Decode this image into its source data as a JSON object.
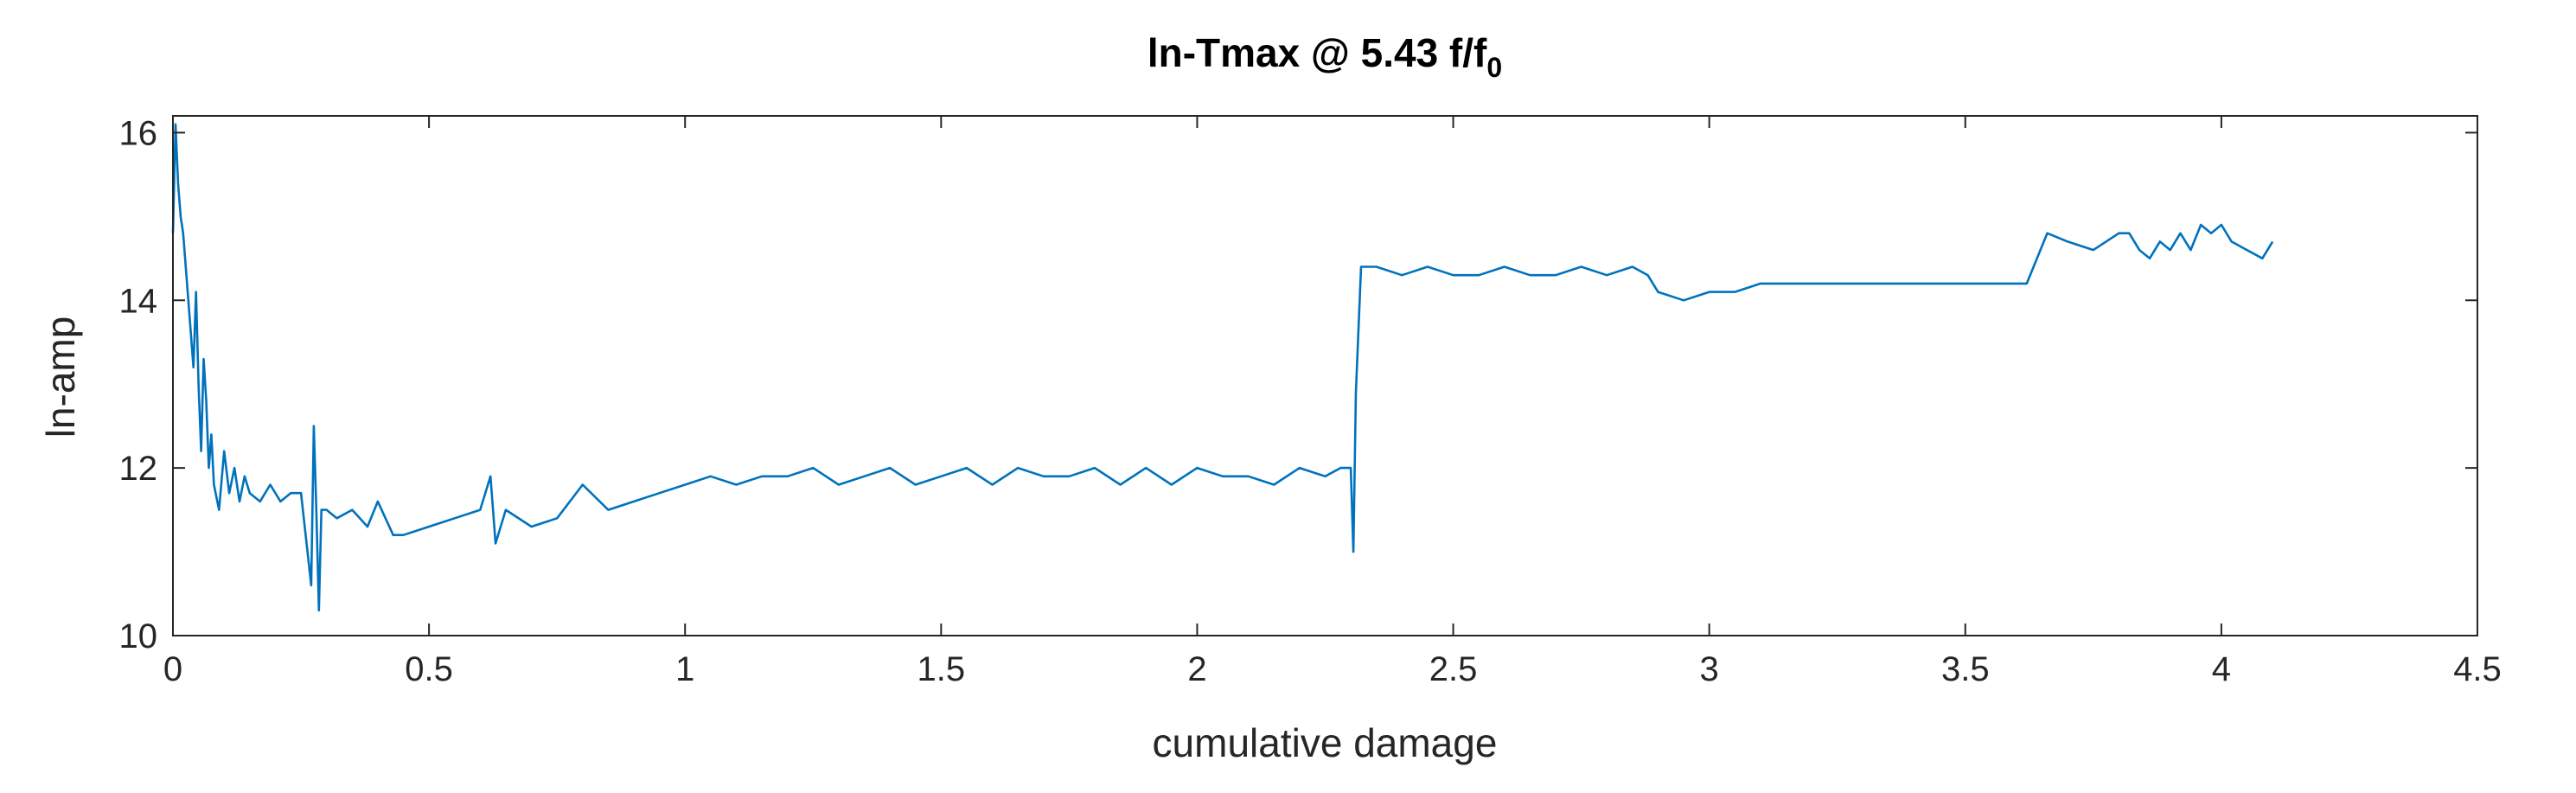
{
  "chart_data": {
    "type": "line",
    "title": "ln-Tmax @ 5.43 f/f",
    "title_subscript": "0",
    "xlabel": "cumulative damage",
    "ylabel": "ln-amp",
    "xlim": [
      0,
      4.5
    ],
    "ylim": [
      10,
      16.2
    ],
    "xticks": [
      0,
      0.5,
      1,
      1.5,
      2,
      2.5,
      3,
      3.5,
      4,
      4.5
    ],
    "xtick_labels": [
      "0",
      "0.5",
      "1",
      "1.5",
      "2",
      "2.5",
      "3",
      "3.5",
      "4",
      "4.5"
    ],
    "yticks": [
      10,
      12,
      14,
      16
    ],
    "ytick_labels": [
      "10",
      "12",
      "14",
      "16"
    ],
    "grid": false,
    "color": "#0072BD",
    "series": [
      {
        "x": [
          0,
          0.005,
          0.01,
          0.015,
          0.02,
          0.03,
          0.04,
          0.045,
          0.05,
          0.055,
          0.06,
          0.065,
          0.07,
          0.075,
          0.08,
          0.09,
          0.1,
          0.11,
          0.12,
          0.13,
          0.14,
          0.15,
          0.17,
          0.19,
          0.21,
          0.23,
          0.25,
          0.27,
          0.275,
          0.28,
          0.285,
          0.29,
          0.295,
          0.3,
          0.32,
          0.35,
          0.38,
          0.4,
          0.43,
          0.45,
          0.5,
          0.55,
          0.6,
          0.62,
          0.63,
          0.65,
          0.7,
          0.75,
          0.8,
          0.85,
          0.9,
          0.95,
          1.0,
          1.05,
          1.1,
          1.15,
          1.2,
          1.25,
          1.3,
          1.35,
          1.4,
          1.45,
          1.5,
          1.55,
          1.6,
          1.65,
          1.7,
          1.75,
          1.8,
          1.85,
          1.9,
          1.95,
          2.0,
          2.05,
          2.1,
          2.15,
          2.2,
          2.25,
          2.28,
          2.3,
          2.305,
          2.31,
          2.32,
          2.35,
          2.4,
          2.45,
          2.5,
          2.55,
          2.6,
          2.65,
          2.7,
          2.75,
          2.8,
          2.85,
          2.88,
          2.9,
          2.95,
          3.0,
          3.05,
          3.1,
          3.15,
          3.2,
          3.25,
          3.3,
          3.35,
          3.4,
          3.45,
          3.5,
          3.55,
          3.6,
          3.62,
          3.64,
          3.66,
          3.7,
          3.75,
          3.8,
          3.82,
          3.84,
          3.86,
          3.88,
          3.9,
          3.92,
          3.94,
          3.96,
          3.98,
          4.0,
          4.02,
          4.05,
          4.08,
          4.1
        ],
        "y": [
          14.8,
          16.1,
          15.4,
          15.0,
          14.8,
          14.0,
          13.2,
          14.1,
          13.0,
          12.2,
          13.3,
          12.8,
          12.0,
          12.4,
          11.8,
          11.5,
          12.2,
          11.7,
          12.0,
          11.6,
          11.9,
          11.7,
          11.6,
          11.8,
          11.6,
          11.7,
          11.7,
          10.6,
          12.5,
          11.5,
          10.3,
          11.5,
          11.5,
          11.5,
          11.4,
          11.5,
          11.3,
          11.6,
          11.2,
          11.2,
          11.3,
          11.4,
          11.5,
          11.9,
          11.1,
          11.5,
          11.3,
          11.4,
          11.8,
          11.5,
          11.6,
          11.7,
          11.8,
          11.9,
          11.8,
          11.9,
          11.9,
          12.0,
          11.8,
          11.9,
          12.0,
          11.8,
          11.9,
          12.0,
          11.8,
          12.0,
          11.9,
          11.9,
          12.0,
          11.8,
          12.0,
          11.8,
          12.0,
          11.9,
          11.9,
          11.8,
          12.0,
          11.9,
          12.0,
          12.0,
          11.0,
          12.9,
          14.4,
          14.4,
          14.3,
          14.4,
          14.3,
          14.3,
          14.4,
          14.3,
          14.3,
          14.4,
          14.3,
          14.4,
          14.3,
          14.1,
          14.0,
          14.1,
          14.1,
          14.2,
          14.2,
          14.2,
          14.2,
          14.2,
          14.2,
          14.2,
          14.2,
          14.2,
          14.2,
          14.2,
          14.2,
          14.5,
          14.8,
          14.7,
          14.6,
          14.8,
          14.8,
          14.6,
          14.5,
          14.7,
          14.6,
          14.8,
          14.6,
          14.9,
          14.8,
          14.9,
          14.7,
          14.6,
          14.5,
          14.7
        ]
      }
    ]
  }
}
